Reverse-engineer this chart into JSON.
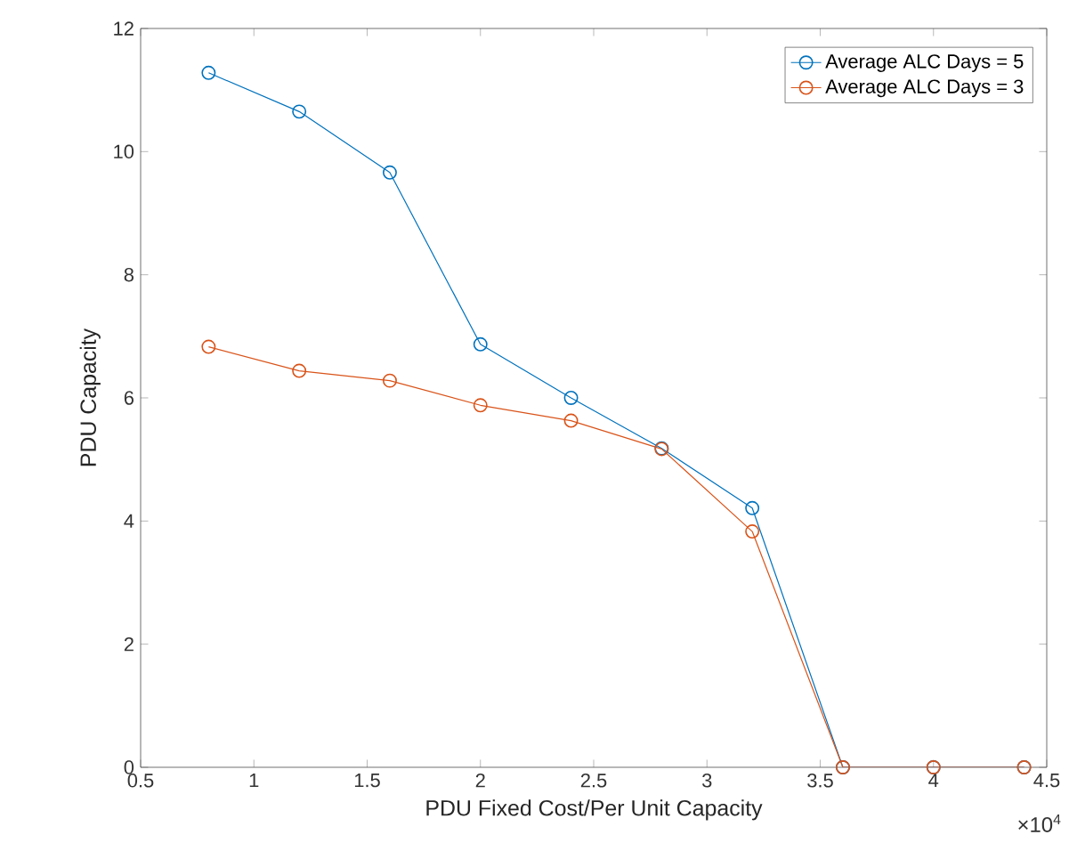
{
  "chart_data": {
    "type": "line",
    "xlabel": "PDU Fixed Cost/Per Unit Capacity",
    "ylabel": "PDU Capacity",
    "x": [
      0.8,
      1.2,
      1.6,
      2.0,
      2.4,
      2.8,
      3.2,
      3.6,
      4.0,
      4.4
    ],
    "series": [
      {
        "name": "Average ALC Days = 5",
        "color": "#0072bd",
        "values": [
          11.28,
          10.65,
          9.66,
          6.87,
          6.0,
          5.18,
          4.21,
          0,
          0,
          0
        ]
      },
      {
        "name": "Average ALC Days = 3",
        "color": "#d95319",
        "values": [
          6.83,
          6.44,
          6.28,
          5.88,
          5.63,
          5.17,
          3.83,
          0,
          0,
          0
        ]
      }
    ],
    "xlim": [
      0.5,
      4.5
    ],
    "xticks": [
      0.5,
      1,
      1.5,
      2,
      2.5,
      3,
      3.5,
      4,
      4.5
    ],
    "ylim": [
      0,
      12
    ],
    "yticks": [
      0,
      2,
      4,
      6,
      8,
      10,
      12
    ],
    "annotations": [
      "×10$^{4}$"
    ],
    "legend": "top right",
    "marker": "circle",
    "line_style": "solid",
    "grid": false
  }
}
